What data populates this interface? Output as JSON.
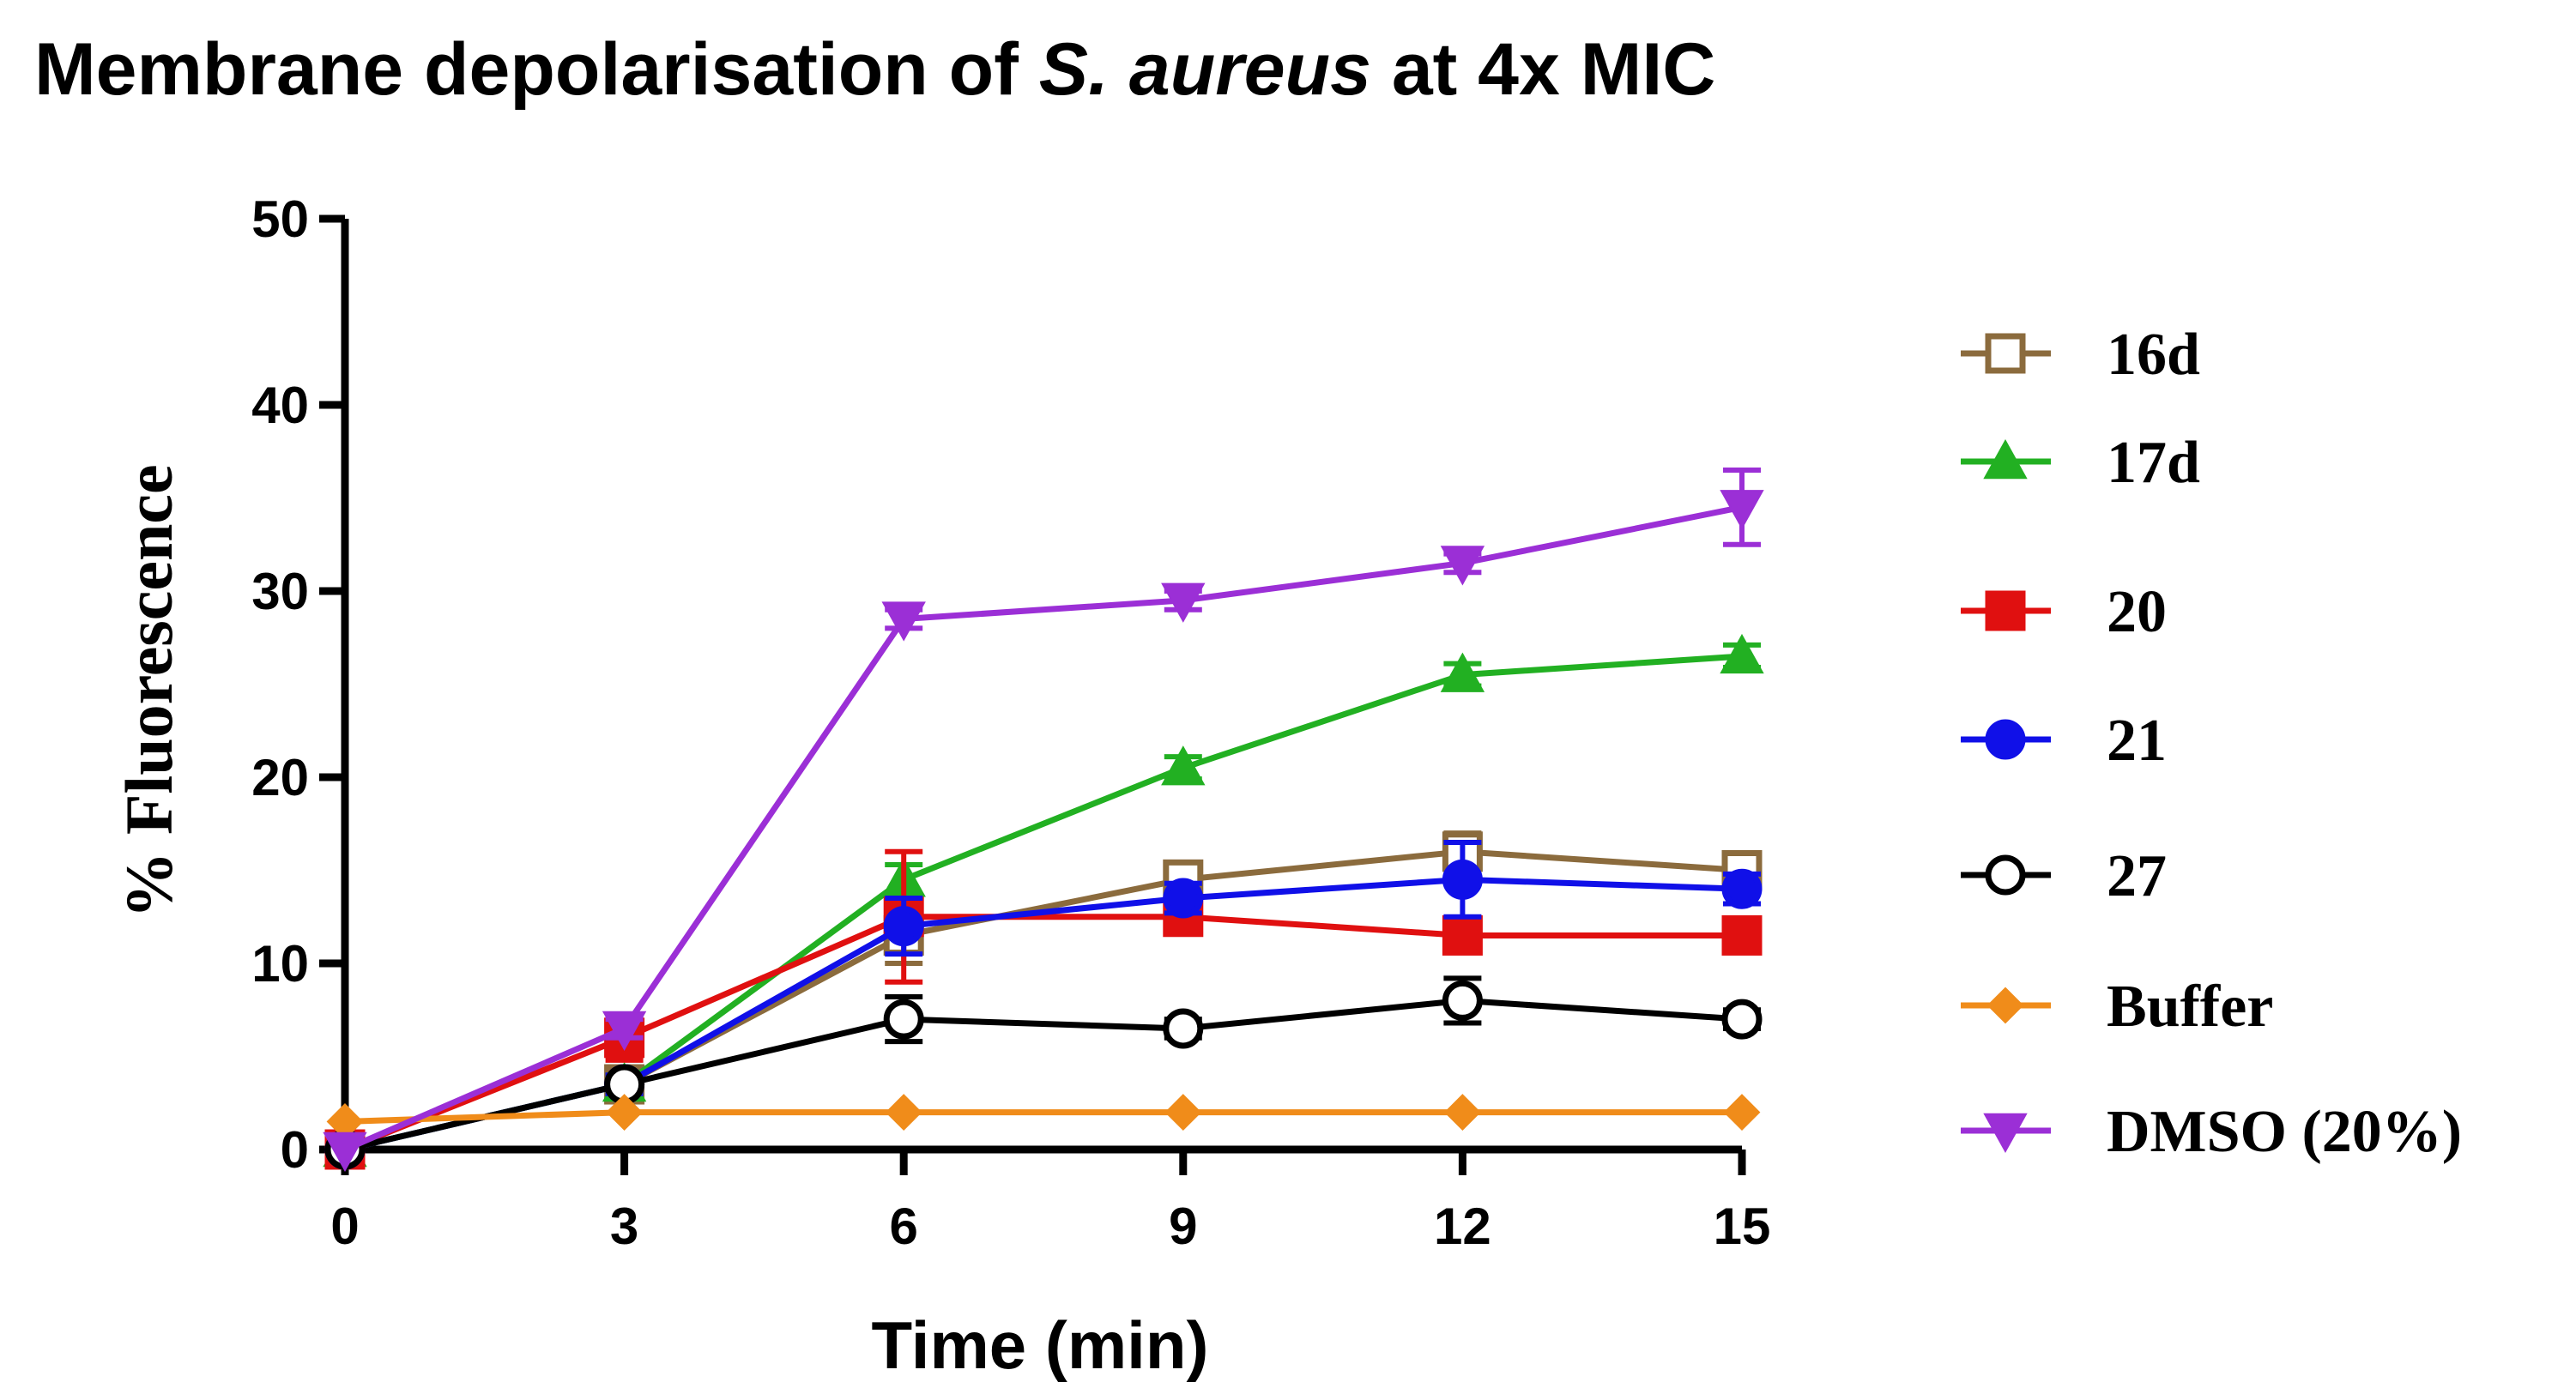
{
  "chart_data": {
    "type": "line",
    "title": {
      "prefix": "Membrane depolarisation of ",
      "italic": "S. aureus",
      "suffix": " at 4x MIC"
    },
    "xlabel": "Time (min)",
    "ylabel": "% Fluorescence",
    "x": [
      0,
      3,
      6,
      9,
      12,
      15
    ],
    "xlim": [
      0,
      15
    ],
    "ylim": [
      0,
      50
    ],
    "xticks": [
      "0",
      "3",
      "6",
      "9",
      "12",
      "15"
    ],
    "yticks": [
      "0",
      "10",
      "20",
      "30",
      "40",
      "50"
    ],
    "grid": false,
    "legend_position": "right",
    "series": [
      {
        "name": "16d",
        "color": "#8B6B3D",
        "marker": "square-open",
        "values": [
          0,
          3.5,
          11.5,
          14.5,
          16,
          15
        ],
        "errors": [
          0,
          0.5,
          1.5,
          0.8,
          1,
          0.8
        ]
      },
      {
        "name": "17d",
        "color": "#22B022",
        "marker": "triangle-up",
        "values": [
          0,
          3.5,
          14.5,
          20.5,
          25.5,
          26.5
        ],
        "errors": [
          0,
          0.5,
          0.8,
          0.6,
          0.6,
          0.6
        ]
      },
      {
        "name": "20",
        "color": "#E01010",
        "marker": "square",
        "values": [
          0,
          6,
          12.5,
          12.5,
          11.5,
          11.5
        ],
        "errors": [
          0,
          1.2,
          3.5,
          0.6,
          0.6,
          0.5
        ]
      },
      {
        "name": "21",
        "color": "#1010E8",
        "marker": "circle",
        "values": [
          0,
          3.5,
          12,
          13.5,
          14.5,
          14
        ],
        "errors": [
          0,
          0.5,
          1.5,
          0.8,
          2,
          0.8
        ]
      },
      {
        "name": "27",
        "color": "#000000",
        "marker": "circle-open",
        "values": [
          0,
          3.5,
          7,
          6.5,
          8,
          7
        ],
        "errors": [
          0,
          0.3,
          1.2,
          0.5,
          1.2,
          0.5
        ]
      },
      {
        "name": "Buffer",
        "color": "#F08C1A",
        "marker": "diamond",
        "values": [
          1.5,
          2,
          2,
          2,
          2,
          2
        ],
        "errors": [
          0,
          0,
          0,
          0,
          0,
          0
        ]
      },
      {
        "name": "DMSO (20%)",
        "color": "#9B2FD6",
        "marker": "triangle-down",
        "values": [
          0,
          6.5,
          28.5,
          29.5,
          31.5,
          34.5
        ],
        "errors": [
          0,
          0.5,
          0.5,
          0.5,
          0.5,
          2
        ]
      }
    ]
  }
}
